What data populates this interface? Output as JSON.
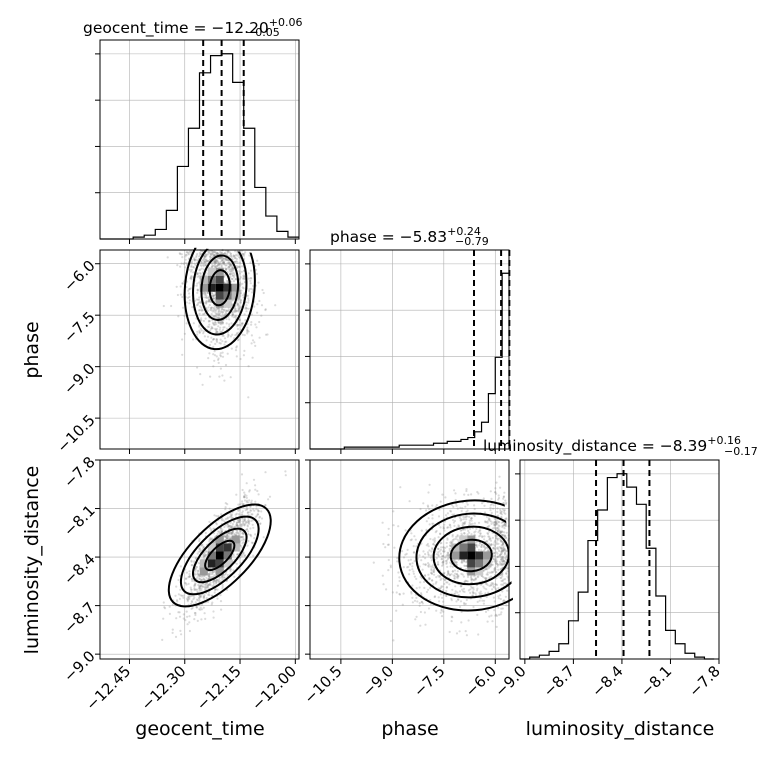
{
  "chart_data": {
    "type": "corner",
    "parameters": [
      {
        "name": "geocent_time",
        "axis_label": "geocent_time",
        "title_main": "geocent_time = −12.20",
        "title_sup": "+0.06",
        "title_sub": "−0.05",
        "range": [
          -12.53,
          -11.99
        ],
        "ticks": [
          -12.45,
          -12.3,
          -12.15,
          -12.0
        ],
        "tick_labels": [
          "−12.45",
          "−12.30",
          "−12.15",
          "−12.00"
        ],
        "quantiles": [
          -12.25,
          -12.2,
          -12.14
        ],
        "hist_x": [
          -12.53,
          -12.5,
          -12.47,
          -12.44,
          -12.41,
          -12.38,
          -12.35,
          -12.32,
          -12.29,
          -12.26,
          -12.23,
          -12.2,
          -12.17,
          -12.14,
          -12.11,
          -12.08,
          -12.05,
          -12.02,
          -11.99
        ],
        "hist_y": [
          0.0,
          0.0,
          0.0,
          0.01,
          0.02,
          0.05,
          0.15,
          0.38,
          0.58,
          0.87,
          0.96,
          0.97,
          0.82,
          0.58,
          0.27,
          0.12,
          0.04,
          0.01
        ]
      },
      {
        "name": "phase",
        "axis_label": "phase",
        "title_main": "phase = −5.83",
        "title_sup": "+0.24",
        "title_sub": "−0.79",
        "range": [
          -11.4,
          -5.6
        ],
        "ticks": [
          -10.5,
          -9.0,
          -7.5,
          -6.0
        ],
        "tick_labels": [
          "−10.5",
          "−9.0",
          "−7.5",
          "−6.0"
        ],
        "quantiles": [
          -6.62,
          -5.83,
          -5.59
        ],
        "hist_x": [
          -11.4,
          -11.2,
          -11.0,
          -10.8,
          -10.6,
          -10.4,
          -10.2,
          -10.0,
          -9.8,
          -9.6,
          -9.4,
          -9.2,
          -9.0,
          -8.8,
          -8.6,
          -8.4,
          -8.2,
          -8.0,
          -7.8,
          -7.6,
          -7.4,
          -7.2,
          -7.0,
          -6.8,
          -6.6,
          -6.4,
          -6.2,
          -6.0,
          -5.8,
          -5.6
        ],
        "hist_y": [
          0.0,
          0.0,
          0.0,
          0.0,
          0.0,
          0.01,
          0.01,
          0.01,
          0.01,
          0.01,
          0.01,
          0.01,
          0.01,
          0.02,
          0.02,
          0.02,
          0.02,
          0.02,
          0.03,
          0.03,
          0.04,
          0.04,
          0.05,
          0.06,
          0.09,
          0.14,
          0.29,
          0.48,
          0.92
        ]
      },
      {
        "name": "luminosity_distance",
        "axis_label": "luminosity_distance",
        "title_main": "luminosity_distance = −8.39",
        "title_sup": "+0.16",
        "title_sub": "−0.17",
        "range": [
          -9.03,
          -7.8
        ],
        "ticks": [
          -9.0,
          -8.7,
          -8.4,
          -8.1,
          -7.8
        ],
        "tick_labels": [
          "−9.0",
          "−8.7",
          "−8.4",
          "−8.1",
          "−7.8"
        ],
        "quantiles": [
          -8.56,
          -8.39,
          -8.23
        ],
        "hist_x": [
          -9.03,
          -8.97,
          -8.91,
          -8.85,
          -8.79,
          -8.73,
          -8.67,
          -8.61,
          -8.55,
          -8.49,
          -8.43,
          -8.37,
          -8.31,
          -8.25,
          -8.19,
          -8.13,
          -8.07,
          -8.01,
          -7.95,
          -7.89,
          -7.83
        ],
        "hist_y": [
          0.0,
          0.01,
          0.02,
          0.04,
          0.08,
          0.2,
          0.35,
          0.62,
          0.78,
          0.95,
          0.97,
          0.9,
          0.81,
          0.58,
          0.33,
          0.15,
          0.08,
          0.03,
          0.01,
          0.0
        ]
      }
    ],
    "pairs": [
      {
        "x_param": "geocent_time",
        "y_param": "phase",
        "mean": [
          -12.205,
          -6.7
        ],
        "sd": [
          0.045,
          0.9
        ],
        "corr": -0.15,
        "y_clip": -5.6
      },
      {
        "x_param": "geocent_time",
        "y_param": "luminosity_distance",
        "mean": [
          -12.205,
          -8.39
        ],
        "sd": [
          0.05,
          0.17
        ],
        "corr": 0.8
      },
      {
        "x_param": "phase",
        "y_param": "luminosity_distance",
        "mean": [
          -6.7,
          -8.39
        ],
        "sd": [
          1.0,
          0.17
        ],
        "corr": 0.15,
        "x_clip": -5.6
      }
    ],
    "grid": true
  }
}
